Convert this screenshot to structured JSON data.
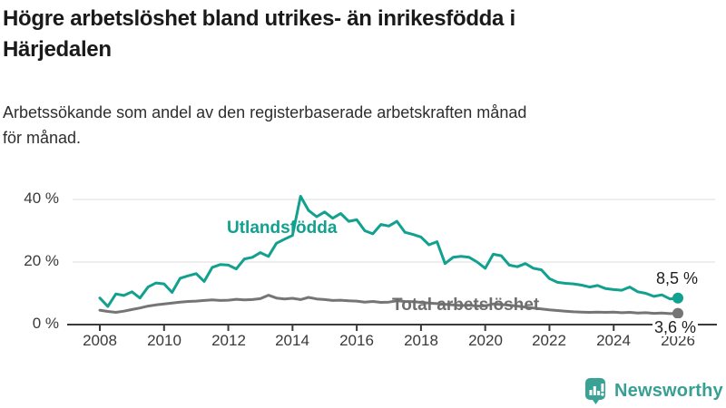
{
  "header": {
    "title_line1": "Högre arbetslöshet bland utrikes- än inrikesfödda i",
    "title_line2": "Härjedalen",
    "subtitle_line1": "Arbetssökande som andel av den registerbaserade arbetskraften månad",
    "subtitle_line2": "för månad."
  },
  "logo": {
    "text": "Newsworthy",
    "icon": "newsworthy-speech-bubble-bars-icon",
    "color": "#38a093"
  },
  "colors": {
    "teal": "#12a08f",
    "gray_line": "#757575",
    "gray_label": "#6e6e6e",
    "axis": "#3a3a3a",
    "gridline": "#dcdcdc",
    "end_label_text": "#1f1f1f"
  },
  "chart_data": {
    "type": "line",
    "title": "Högre arbetslöshet bland utrikes- än inrikesfödda i Härjedalen",
    "subtitle": "Arbetssökande som andel av den registerbaserade arbetskraften månad för månad.",
    "x_unit": "year",
    "x_start": 2008,
    "x_step": 0.25,
    "x_end": 2026,
    "xlim": [
      2008,
      2026
    ],
    "ylim": [
      0,
      44
    ],
    "grid": "horizontal",
    "legend_position": "inline-labels",
    "x_ticks": [
      2008,
      2010,
      2012,
      2014,
      2016,
      2018,
      2020,
      2022,
      2024,
      2026
    ],
    "y_ticks": [
      {
        "value": 0,
        "label": "0 %"
      },
      {
        "value": 20,
        "label": "20 %"
      },
      {
        "value": 40,
        "label": "40 %"
      }
    ],
    "series": [
      {
        "name": "Utlandsfödda",
        "end_label": "8,5 %",
        "end_value": 8.5,
        "values": [
          8.5,
          5.8,
          9.8,
          9.3,
          10.5,
          8.5,
          12.0,
          13.3,
          13.0,
          10.3,
          14.8,
          15.6,
          16.3,
          13.8,
          18.3,
          19.2,
          19.0,
          17.8,
          21.0,
          21.5,
          23.0,
          21.8,
          26.0,
          27.3,
          28.5,
          41.0,
          36.5,
          34.5,
          36.0,
          34.0,
          35.5,
          33.0,
          33.5,
          30.0,
          29.0,
          32.0,
          31.5,
          33.0,
          29.5,
          28.8,
          28.0,
          25.5,
          26.5,
          19.5,
          21.5,
          21.8,
          21.5,
          20.0,
          18.0,
          22.5,
          22.0,
          19.0,
          18.5,
          19.5,
          18.0,
          17.5,
          14.7,
          13.5,
          13.2,
          13.0,
          12.6,
          12.0,
          12.5,
          11.5,
          11.2,
          11.0,
          12.0,
          10.5,
          10.0,
          9.0,
          9.5,
          8.2,
          8.5
        ]
      },
      {
        "name": "Total arbetslöshet",
        "end_label": "3,6 %",
        "end_value": 3.6,
        "values": [
          4.6,
          4.2,
          3.9,
          4.3,
          4.8,
          5.3,
          5.9,
          6.3,
          6.6,
          6.9,
          7.2,
          7.4,
          7.5,
          7.7,
          7.9,
          7.7,
          7.8,
          8.1,
          7.9,
          8.0,
          8.3,
          9.4,
          8.5,
          8.2,
          8.4,
          8.0,
          8.7,
          8.2,
          8.0,
          7.7,
          7.8,
          7.6,
          7.5,
          7.2,
          7.4,
          7.1,
          7.2,
          7.6,
          7.4,
          7.3,
          7.1,
          6.9,
          6.7,
          6.5,
          6.3,
          6.1,
          6.2,
          5.9,
          6.0,
          6.6,
          6.4,
          6.2,
          5.9,
          5.6,
          5.3,
          5.0,
          4.7,
          4.5,
          4.3,
          4.1,
          4.0,
          3.9,
          4.0,
          3.9,
          4.0,
          3.8,
          3.9,
          3.7,
          3.8,
          3.6,
          3.7,
          3.5,
          3.6
        ]
      }
    ]
  }
}
